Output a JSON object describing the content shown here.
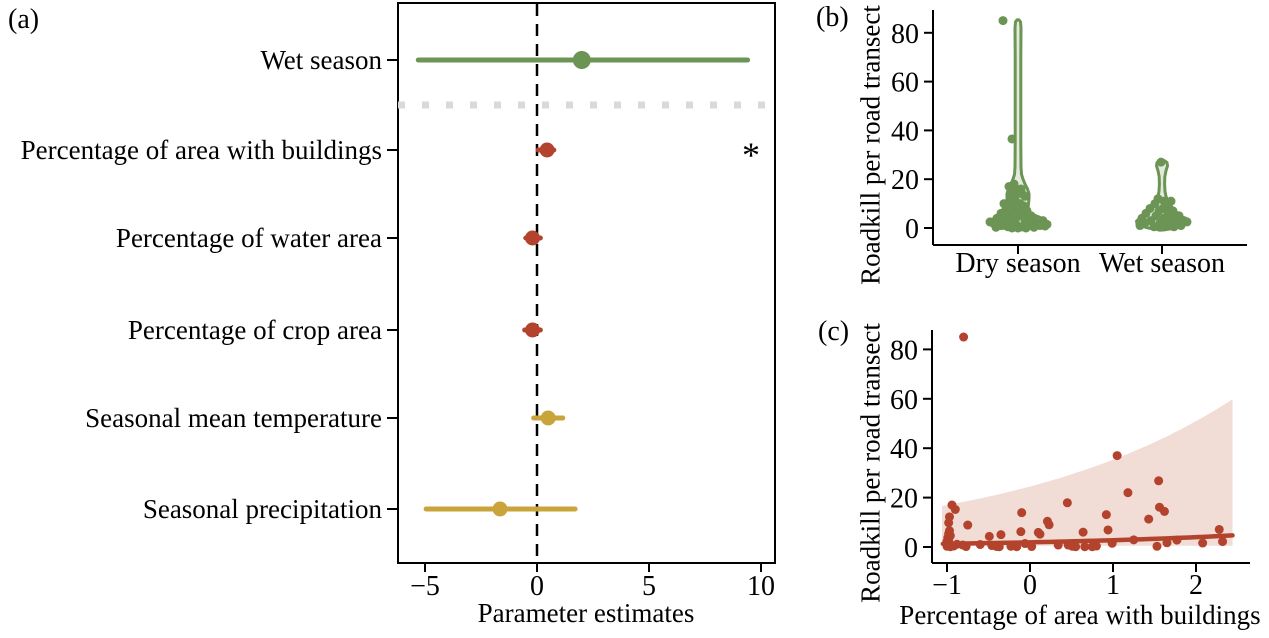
{
  "panel_tags": {
    "a": "(a)",
    "b": "(b)",
    "c": "(c)"
  },
  "colors": {
    "green": "#6b9455",
    "red": "#b3432c",
    "gold": "#c9a43b",
    "violin_fill": "#e4e9de",
    "band_fill": "#f1dcd6",
    "separator_gray": "#d9d9d9",
    "axis_black": "#000000"
  },
  "chart_data": [
    {
      "id": "a",
      "type": "scatter",
      "subtype": "dot-whisker-forest",
      "xlabel": "Parameter estimates",
      "x_ticks": [
        -5,
        0,
        5,
        10
      ],
      "xlim": [
        -6.2,
        10.6
      ],
      "zero_line": 0,
      "separator_after_row": 0,
      "rows": [
        {
          "label": "Wet season",
          "estimate": 2.0,
          "ci": [
            -5.3,
            9.4
          ],
          "color_key": "green",
          "sig": ""
        },
        {
          "label": "Percentage of area with buildings",
          "estimate": 0.45,
          "ci": [
            0.05,
            0.75
          ],
          "color_key": "red",
          "sig": "*"
        },
        {
          "label": "Percentage of water area",
          "estimate": -0.2,
          "ci": [
            -0.5,
            0.15
          ],
          "color_key": "red",
          "sig": ""
        },
        {
          "label": "Percentage of crop area",
          "estimate": -0.2,
          "ci": [
            -0.55,
            0.15
          ],
          "color_key": "red",
          "sig": ""
        },
        {
          "label": "Seasonal mean temperature",
          "estimate": 0.5,
          "ci": [
            -0.15,
            1.15
          ],
          "color_key": "gold",
          "sig": ""
        },
        {
          "label": "Seasonal precipitation",
          "estimate": -1.65,
          "ci": [
            -4.95,
            1.7
          ],
          "color_key": "gold",
          "sig": ""
        }
      ]
    },
    {
      "id": "b",
      "type": "violin",
      "ylabel": "Roadkill per road transect",
      "y_ticks": [
        0,
        20,
        40,
        60,
        80
      ],
      "ylim": [
        -2,
        88
      ],
      "categories": [
        "Dry season",
        "Wet season"
      ],
      "series": [
        {
          "name": "Dry season",
          "outline_value_halfwidthpx": [
            [
              -0.8,
              2
            ],
            [
              0,
              16
            ],
            [
              0.8,
              24
            ],
            [
              1.5,
              28
            ],
            [
              2.5,
              28.5
            ],
            [
              3.5,
              26
            ],
            [
              4.5,
              21
            ],
            [
              5.5,
              15
            ],
            [
              6.5,
              12
            ],
            [
              8,
              10
            ],
            [
              10,
              10.5
            ],
            [
              12,
              11
            ],
            [
              14,
              11
            ],
            [
              16,
              9.5
            ],
            [
              18,
              7
            ],
            [
              20,
              5
            ],
            [
              22,
              3.5
            ],
            [
              25,
              3
            ],
            [
              35,
              2.8
            ],
            [
              50,
              2.8
            ],
            [
              70,
              2.8
            ],
            [
              82,
              3
            ],
            [
              84.5,
              2.5
            ],
            [
              85.3,
              1
            ]
          ],
          "points_value_offsetpx": [
            [
              85,
              -15
            ],
            [
              36.5,
              -6
            ],
            [
              18,
              -4
            ],
            [
              17,
              -9
            ],
            [
              16,
              3
            ],
            [
              15,
              -2
            ],
            [
              14,
              -7
            ],
            [
              14,
              4
            ],
            [
              13,
              7
            ],
            [
              12,
              -3
            ],
            [
              11,
              -8
            ],
            [
              10,
              2
            ],
            [
              10,
              -14
            ],
            [
              9,
              6
            ],
            [
              9,
              -5
            ],
            [
              8,
              -1
            ],
            [
              8,
              -12
            ],
            [
              7,
              9
            ],
            [
              7,
              -7
            ],
            [
              6,
              1
            ],
            [
              6,
              -17
            ],
            [
              5,
              -9
            ],
            [
              5,
              13
            ],
            [
              5,
              5
            ],
            [
              4,
              -21
            ],
            [
              4,
              -2
            ],
            [
              4,
              16
            ],
            [
              3,
              -13
            ],
            [
              3,
              7
            ],
            [
              3,
              25
            ],
            [
              2,
              -25
            ],
            [
              2,
              -5
            ],
            [
              2,
              11
            ],
            [
              2,
              19
            ],
            [
              1,
              -17
            ],
            [
              1,
              -1
            ],
            [
              1,
              9
            ],
            [
              1,
              22
            ],
            [
              0.5,
              -10
            ],
            [
              0.5,
              4
            ],
            [
              0.3,
              16
            ],
            [
              0.3,
              -22
            ],
            [
              0.8,
              27
            ],
            [
              1.5,
              29
            ],
            [
              2.5,
              -28
            ],
            [
              0,
              0
            ],
            [
              0,
              -6
            ],
            [
              0,
              8
            ]
          ]
        },
        {
          "name": "Wet season",
          "outline_value_halfwidthpx": [
            [
              -0.8,
              2
            ],
            [
              0,
              14
            ],
            [
              0.8,
              20
            ],
            [
              1.8,
              25
            ],
            [
              2.8,
              25.5
            ],
            [
              3.8,
              23
            ],
            [
              5,
              19
            ],
            [
              6,
              16
            ],
            [
              7,
              13
            ],
            [
              8.5,
              10
            ],
            [
              10,
              7.5
            ],
            [
              11.5,
              5.5
            ],
            [
              13,
              4
            ],
            [
              15,
              3
            ],
            [
              18,
              2.6
            ],
            [
              21,
              2.8
            ],
            [
              23.5,
              4
            ],
            [
              25.5,
              5.5
            ],
            [
              26.8,
              5
            ],
            [
              27.6,
              2.5
            ]
          ],
          "points_value_offsetpx": [
            [
              27,
              -1
            ],
            [
              12,
              -4
            ],
            [
              11,
              9
            ],
            [
              11,
              2
            ],
            [
              10,
              -7
            ],
            [
              9,
              5
            ],
            [
              8,
              -12
            ],
            [
              8,
              1
            ],
            [
              7,
              -3
            ],
            [
              7,
              11
            ],
            [
              6,
              -16
            ],
            [
              6,
              6
            ],
            [
              5,
              -6
            ],
            [
              5,
              17
            ],
            [
              4,
              -20
            ],
            [
              4,
              2
            ],
            [
              4,
              12
            ],
            [
              3,
              -11
            ],
            [
              3,
              8
            ],
            [
              3,
              22
            ],
            [
              2,
              -17
            ],
            [
              2,
              -2
            ],
            [
              2,
              14
            ],
            [
              1,
              -22
            ],
            [
              1,
              5
            ],
            [
              1,
              19
            ],
            [
              0.5,
              -8
            ],
            [
              0.5,
              12
            ],
            [
              0.3,
              -2
            ],
            [
              2.5,
              25
            ]
          ]
        }
      ]
    },
    {
      "id": "c",
      "type": "scatter",
      "xlabel": "Percentage of area with buildings",
      "ylabel": "Roadkill per road transect",
      "x_ticks": [
        -1,
        0,
        1,
        2
      ],
      "y_ticks": [
        0,
        20,
        40,
        60,
        80
      ],
      "xlim": [
        -1.18,
        2.65
      ],
      "ylim": [
        -2,
        88
      ],
      "points": [
        [
          -0.8,
          85
        ],
        [
          -0.94,
          17
        ],
        [
          -0.9,
          15.2
        ],
        [
          -0.97,
          12.2
        ],
        [
          -0.98,
          9.8
        ],
        [
          -0.75,
          8.9
        ],
        [
          -0.97,
          6.6
        ],
        [
          -0.98,
          5.4
        ],
        [
          -0.96,
          4.6
        ],
        [
          -0.99,
          3.8
        ],
        [
          -0.98,
          2.9
        ],
        [
          -1.0,
          2.3
        ],
        [
          -1.0,
          1.6
        ],
        [
          -1.0,
          0.9
        ],
        [
          -1.0,
          0.3
        ],
        [
          -0.96,
          0.1
        ],
        [
          -0.81,
          0.8
        ],
        [
          -0.77,
          0.2
        ],
        [
          -0.92,
          0.4
        ],
        [
          -0.88,
          1.1
        ],
        [
          -0.6,
          1.0
        ],
        [
          -0.49,
          4.3
        ],
        [
          -0.46,
          0.6
        ],
        [
          -0.4,
          0.2
        ],
        [
          -0.35,
          5.0
        ],
        [
          -0.37,
          0.1
        ],
        [
          -0.23,
          0.3
        ],
        [
          -0.16,
          0.1
        ],
        [
          -0.1,
          13.9
        ],
        [
          -0.11,
          6.2
        ],
        [
          -0.06,
          1.4
        ],
        [
          0.02,
          0.2
        ],
        [
          0.1,
          5.9
        ],
        [
          0.12,
          5.2
        ],
        [
          0.21,
          10.4
        ],
        [
          0.23,
          9.0
        ],
        [
          0.34,
          0.8
        ],
        [
          0.45,
          17.9
        ],
        [
          0.46,
          0.8
        ],
        [
          0.51,
          0.3
        ],
        [
          0.55,
          0.1
        ],
        [
          0.64,
          6.0
        ],
        [
          0.66,
          0.1
        ],
        [
          0.75,
          0.1
        ],
        [
          0.8,
          0.4
        ],
        [
          0.92,
          13.1
        ],
        [
          0.94,
          6.9
        ],
        [
          0.99,
          1.5
        ],
        [
          1.05,
          37.0
        ],
        [
          1.18,
          22.0
        ],
        [
          1.25,
          2.9
        ],
        [
          1.43,
          11.3
        ],
        [
          1.55,
          26.8
        ],
        [
          1.56,
          16.1
        ],
        [
          1.62,
          14.4
        ],
        [
          1.53,
          0.3
        ],
        [
          1.65,
          1.7
        ],
        [
          1.77,
          2.8
        ],
        [
          2.08,
          1.6
        ],
        [
          2.28,
          7.1
        ],
        [
          2.32,
          2.2
        ]
      ],
      "fit_line_exp": {
        "a": 1.9,
        "b": 0.37,
        "x0": -1.05,
        "x1": 2.44
      },
      "confidence_band_exp": {
        "upper_a": 24.5,
        "upper_b": 0.366,
        "lower": 0.5,
        "x0": -1.06,
        "x1": 2.44
      }
    }
  ]
}
